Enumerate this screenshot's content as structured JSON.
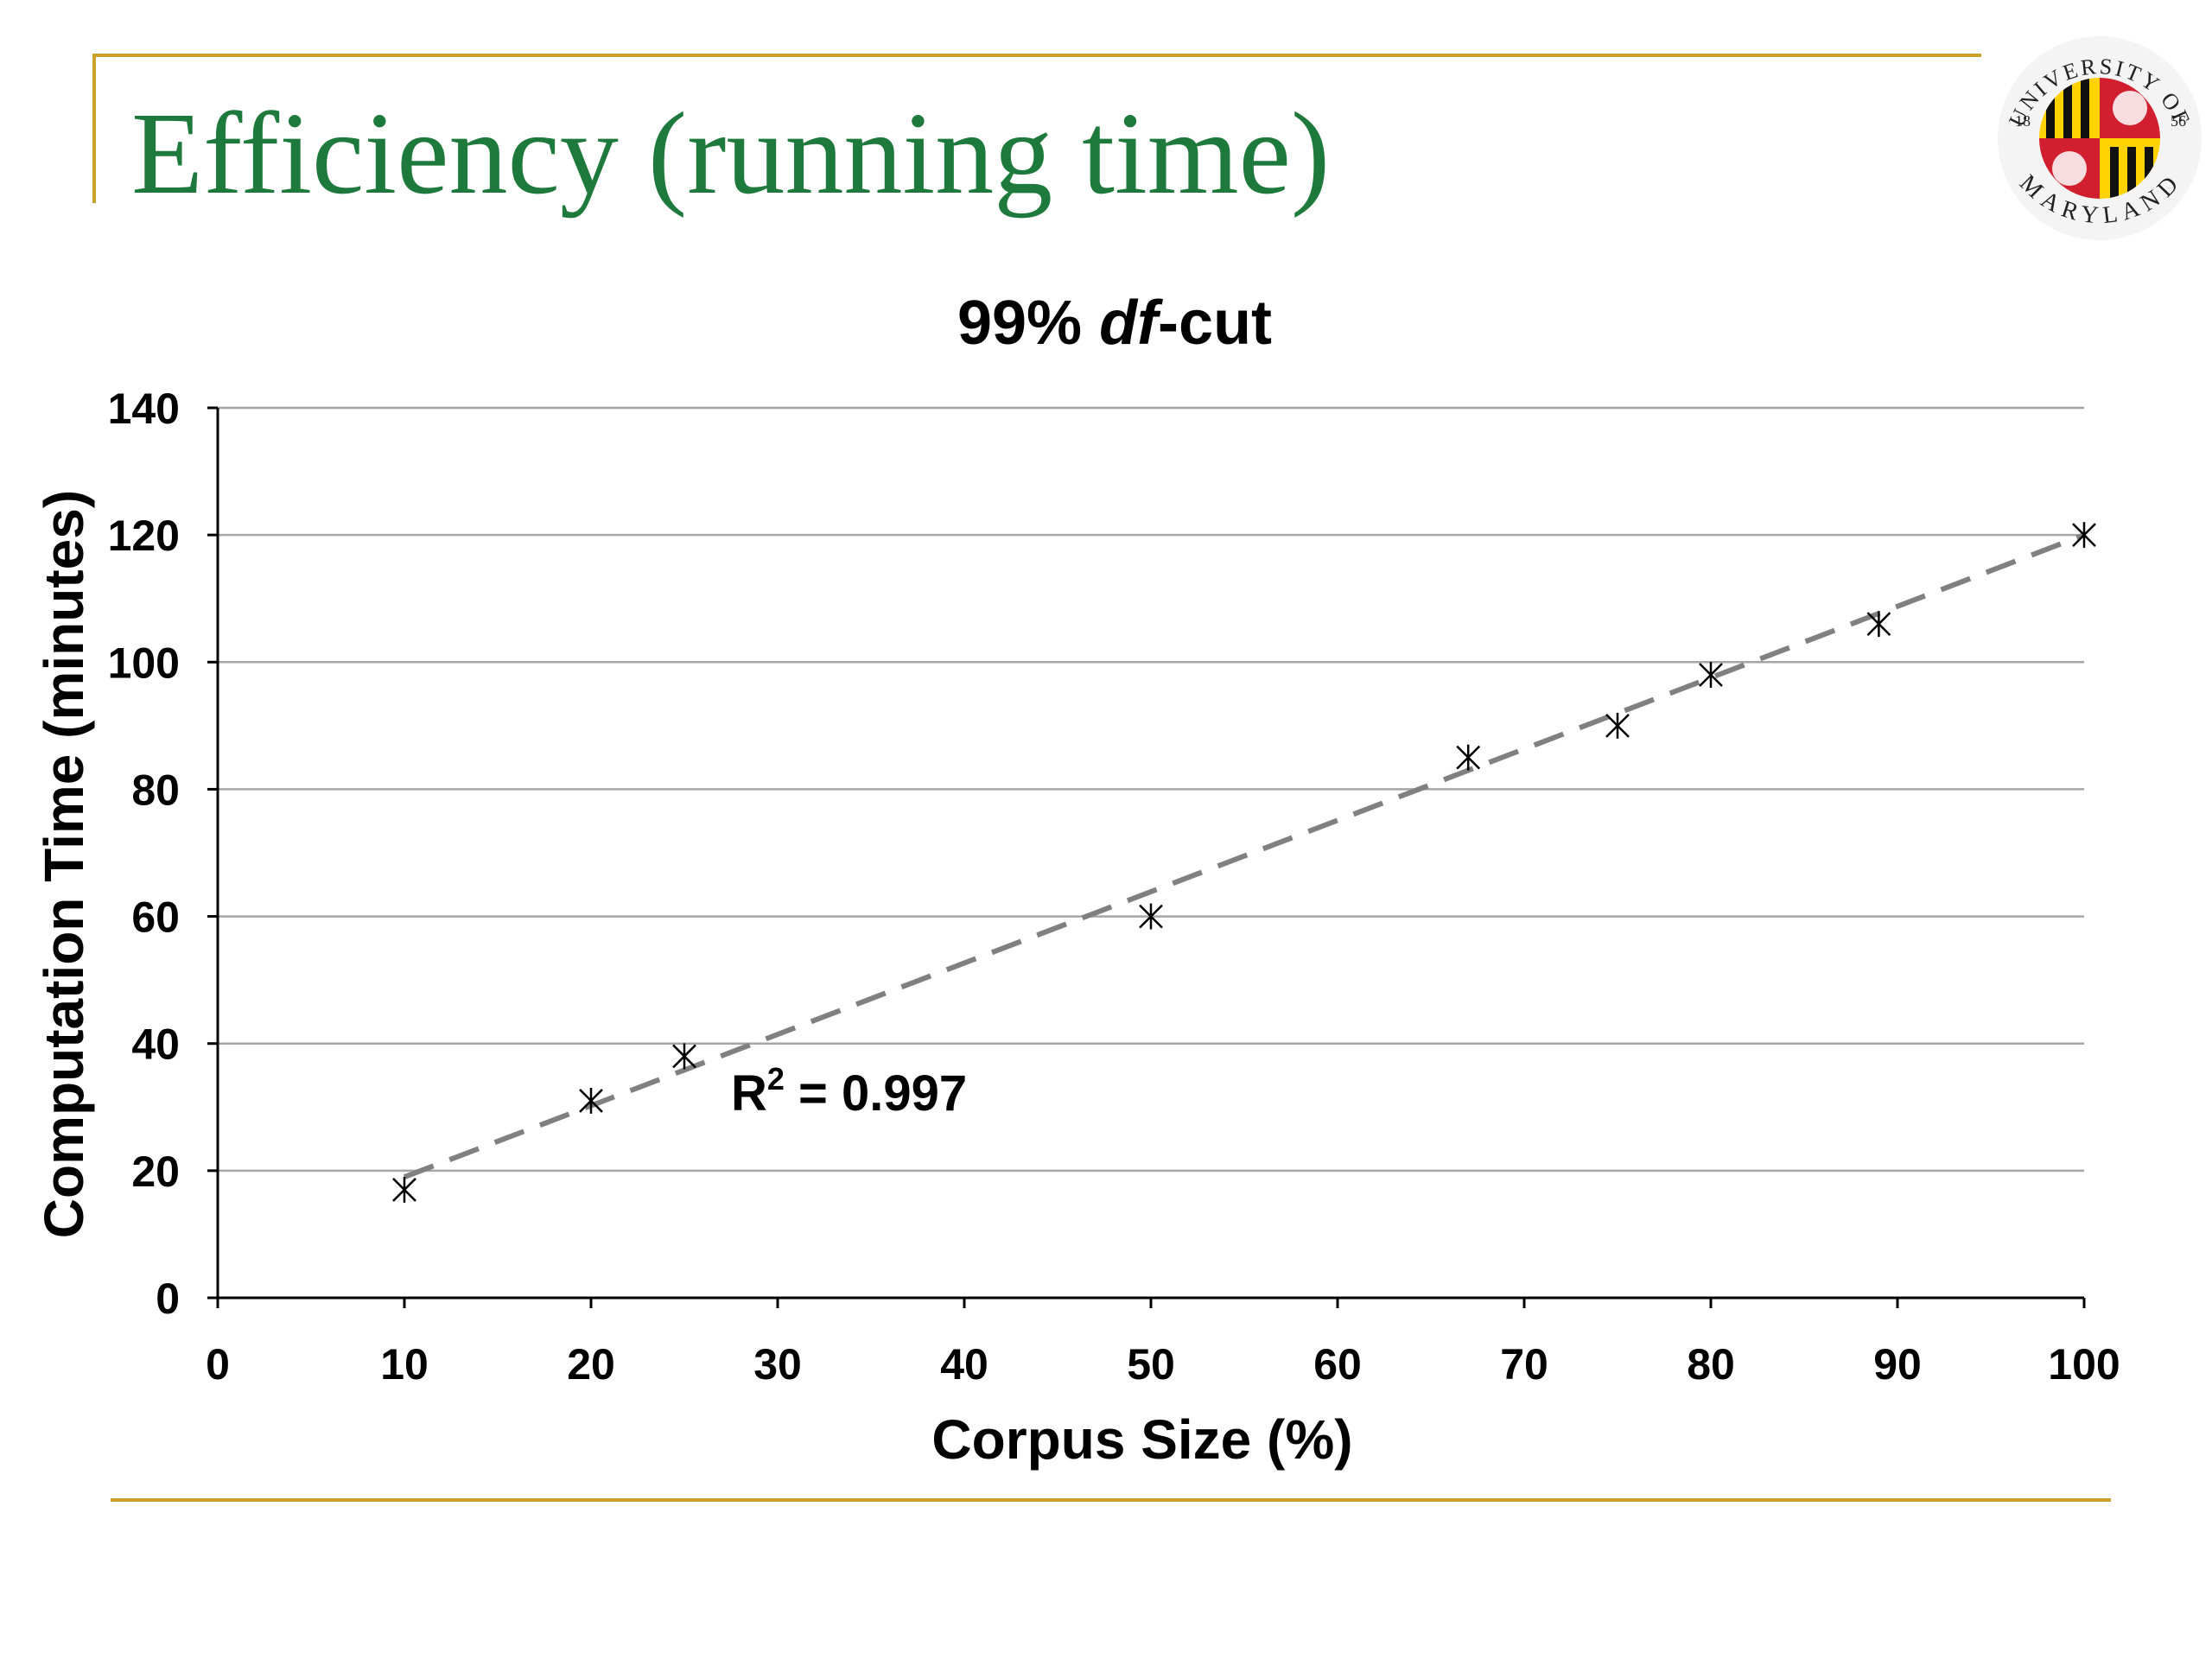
{
  "slide": {
    "title": "Efficiency (running time)"
  },
  "logo": {
    "top_text": "UNIVERSITY OF",
    "bottom_text": "MARYLAND",
    "year_left": "18",
    "year_right": "56"
  },
  "colors": {
    "title": "#1e7a3c",
    "frame": "#c9a227",
    "trendline": "#808080",
    "grid": "#a6a6a6"
  },
  "chart_data": {
    "type": "scatter",
    "title_parts": [
      "99% ",
      "df",
      "-cut"
    ],
    "xlabel": "Corpus Size (%)",
    "ylabel": "Computation Time (minutes)",
    "xlim": [
      0,
      100
    ],
    "ylim": [
      0,
      140
    ],
    "x_ticks": [
      "0",
      "10",
      "20",
      "30",
      "40",
      "50",
      "60",
      "70",
      "80",
      "90",
      "100"
    ],
    "y_ticks": [
      "0",
      "20",
      "40",
      "60",
      "80",
      "100",
      "120",
      "140"
    ],
    "grid": "horizontal",
    "marker": "asterisk",
    "points": [
      {
        "x": 10,
        "y": 17
      },
      {
        "x": 20,
        "y": 31
      },
      {
        "x": 25,
        "y": 38
      },
      {
        "x": 50,
        "y": 60
      },
      {
        "x": 67,
        "y": 85
      },
      {
        "x": 75,
        "y": 90
      },
      {
        "x": 80,
        "y": 98
      },
      {
        "x": 89,
        "y": 106
      },
      {
        "x": 100,
        "y": 120
      }
    ],
    "trendline": {
      "style": "dashed",
      "start": {
        "x": 10,
        "y": 19
      },
      "end": {
        "x": 100,
        "y": 120
      }
    },
    "annotation": {
      "base": "R",
      "sup": "2",
      "rest": " = 0.997",
      "x": 27.5,
      "y": 29.5
    }
  }
}
